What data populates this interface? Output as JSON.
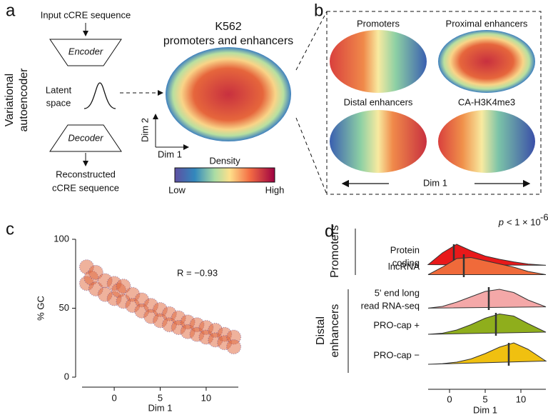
{
  "panels": {
    "a": {
      "label": "a",
      "input": "Input cCRE sequence",
      "encoder": "Encoder",
      "latent": [
        "Latent",
        "space"
      ],
      "decoder": "Decoder",
      "output": [
        "Reconstructed",
        "cCRE sequence"
      ],
      "model": [
        "Variational",
        "autoencoder"
      ],
      "title": [
        "K562",
        "promoters and enhancers"
      ],
      "dim2": "Dim 2",
      "dim1": "Dim 1",
      "density": "Density",
      "low": "Low",
      "high": "High"
    },
    "b": {
      "label": "b",
      "maps": [
        "Promoters",
        "Proximal enhancers",
        "Distal enhancers",
        "CA-H3K4me3"
      ],
      "dim1": "Dim 1"
    },
    "c": {
      "label": "c"
    },
    "d": {
      "label": "d",
      "groups": [
        [
          "Promoters"
        ],
        [
          "Distal",
          "enhancers"
        ]
      ],
      "pvalue": [
        "p",
        "< 1 × 10",
        "-6"
      ]
    }
  },
  "chart_data": [
    {
      "type": "scatter",
      "xlabel": "Dim 1",
      "ylabel": "% GC",
      "annotation": "R = −0.93",
      "color": "#e0653a",
      "x": [
        -3,
        -3,
        -2.5,
        -2,
        -2,
        -1,
        -1,
        0,
        0,
        0.5,
        1,
        1,
        2,
        2,
        3,
        3,
        4,
        4,
        5,
        5,
        6,
        6,
        7,
        7,
        8,
        8,
        9,
        9,
        10,
        10,
        11,
        11,
        12,
        12,
        13,
        13
      ],
      "values": [
        80,
        68,
        72,
        76,
        64,
        70,
        60,
        68,
        57,
        63,
        66,
        55,
        60,
        52,
        56,
        48,
        52,
        44,
        49,
        41,
        46,
        38,
        43,
        36,
        40,
        33,
        38,
        31,
        36,
        29,
        34,
        27,
        31,
        25,
        29,
        22
      ],
      "xlim": [
        -3.5,
        13.5
      ],
      "xticks": [
        0,
        5,
        10
      ],
      "ylim": [
        0,
        100
      ],
      "yticks": [
        0,
        50,
        100
      ]
    },
    {
      "type": "ridge",
      "xlabel": "Dim 1",
      "categories": [
        [
          "Protein",
          "coding"
        ],
        [
          "lncRNA"
        ],
        [
          "5' end long",
          "read RNA-seq"
        ],
        [
          "PRO-cap +"
        ],
        [
          "PRO-cap −"
        ]
      ],
      "x": [
        -3,
        -1,
        1,
        3,
        5,
        7,
        9,
        11,
        13.5
      ],
      "series": [
        {
          "color": "#e8191a",
          "values": [
            0.05,
            0.6,
            1.0,
            0.7,
            0.45,
            0.3,
            0.18,
            0.08,
            0.02
          ]
        },
        {
          "color": "#f06a3a",
          "values": [
            0.05,
            0.4,
            0.8,
            0.85,
            0.7,
            0.55,
            0.4,
            0.2,
            0.05
          ]
        },
        {
          "color": "#f4a8a8",
          "values": [
            0.02,
            0.1,
            0.3,
            0.55,
            0.8,
            0.9,
            0.75,
            0.4,
            0.08
          ]
        },
        {
          "color": "#8fae1c",
          "values": [
            0.0,
            0.05,
            0.2,
            0.45,
            0.75,
            0.95,
            0.85,
            0.5,
            0.1
          ]
        },
        {
          "color": "#f0c010",
          "values": [
            0.0,
            0.03,
            0.1,
            0.25,
            0.5,
            0.8,
            1.0,
            0.7,
            0.15
          ]
        }
      ],
      "medians": [
        0.6,
        2.0,
        5.5,
        6.5,
        8.3
      ],
      "xlim": [
        -3,
        13.5
      ],
      "xticks": [
        0,
        5,
        10
      ]
    }
  ]
}
